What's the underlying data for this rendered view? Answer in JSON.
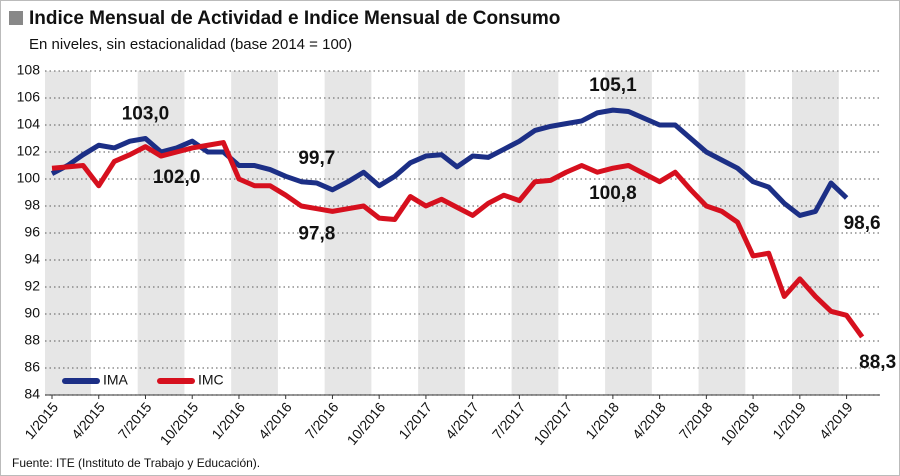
{
  "chart_data": {
    "type": "line",
    "title": "Indice Mensual de Actividad e Indice Mensual de Consumo",
    "subtitle": "En niveles, sin estacionalidad (base 2014 = 100)",
    "source": "Fuente: ITE (Instituto de Trabajo y Educación).",
    "categories": [
      "1/2015",
      null,
      null,
      "4/2015",
      null,
      null,
      "7/2015",
      null,
      null,
      "10/2015",
      null,
      null,
      "1/2016",
      null,
      null,
      "4/2016",
      null,
      null,
      "7/2016",
      null,
      null,
      "10/2016",
      null,
      null,
      "1/2017",
      null,
      null,
      "4/2017",
      null,
      null,
      "7/2017",
      null,
      null,
      "10/2017",
      null,
      null,
      "1/2018",
      null,
      null,
      "4/2018",
      null,
      null,
      "7/2018",
      null,
      null,
      "10/2018",
      null,
      null,
      "1/2019",
      null,
      null,
      "4/2019",
      null
    ],
    "series": [
      {
        "name": "IMA",
        "color": "#1c2f86",
        "values": [
          100.4,
          101.0,
          101.8,
          102.5,
          102.3,
          102.8,
          103.0,
          102.0,
          102.3,
          102.8,
          102.0,
          102.0,
          101.0,
          101.0,
          100.7,
          100.2,
          99.8,
          99.7,
          99.2,
          99.8,
          100.5,
          99.5,
          100.2,
          101.2,
          101.7,
          101.8,
          100.9,
          101.7,
          101.6,
          102.2,
          102.8,
          103.6,
          103.9,
          104.1,
          104.3,
          104.9,
          105.1,
          105.0,
          104.5,
          104.0,
          104.0,
          103.0,
          102.0,
          101.4,
          100.8,
          99.8,
          99.4,
          98.2,
          97.3,
          97.6,
          99.7,
          98.6,
          null
        ],
        "value_labels": [
          null,
          null,
          null,
          null,
          null,
          null,
          "103,0",
          null,
          null,
          null,
          null,
          null,
          null,
          null,
          null,
          null,
          null,
          "99,7",
          null,
          null,
          null,
          null,
          null,
          null,
          null,
          null,
          null,
          null,
          null,
          null,
          null,
          null,
          null,
          null,
          null,
          null,
          "105,1",
          null,
          null,
          null,
          null,
          null,
          null,
          null,
          null,
          null,
          null,
          null,
          null,
          null,
          null,
          "98,6",
          null
        ]
      },
      {
        "name": "IMC",
        "color": "#d6101e",
        "values": [
          100.8,
          100.9,
          101.0,
          99.5,
          101.3,
          101.8,
          102.4,
          101.7,
          102.0,
          102.3,
          102.5,
          102.7,
          100.0,
          99.5,
          99.5,
          98.8,
          98.0,
          97.8,
          97.6,
          97.8,
          98.0,
          97.1,
          97.0,
          98.7,
          98.0,
          98.5,
          97.9,
          97.3,
          98.2,
          98.8,
          98.4,
          99.8,
          99.9,
          100.5,
          101.0,
          100.5,
          100.8,
          101.0,
          100.4,
          99.8,
          100.5,
          99.2,
          98.0,
          97.6,
          96.8,
          94.3,
          94.5,
          91.3,
          92.6,
          91.3,
          90.2,
          89.9,
          88.3
        ],
        "value_labels": [
          null,
          null,
          null,
          null,
          null,
          null,
          null,
          null,
          "102,0",
          null,
          null,
          null,
          null,
          null,
          null,
          null,
          null,
          "97,8",
          null,
          null,
          null,
          null,
          null,
          null,
          null,
          null,
          null,
          null,
          null,
          null,
          null,
          null,
          null,
          null,
          null,
          null,
          "100,8",
          null,
          null,
          null,
          null,
          null,
          null,
          null,
          null,
          null,
          null,
          null,
          null,
          null,
          null,
          null,
          "88,3"
        ]
      }
    ],
    "ylim": [
      84,
      108
    ],
    "yticks": [
      84,
      86,
      88,
      90,
      92,
      94,
      96,
      98,
      100,
      102,
      104,
      106,
      108
    ],
    "grid": true,
    "legend": "bottom-left"
  }
}
